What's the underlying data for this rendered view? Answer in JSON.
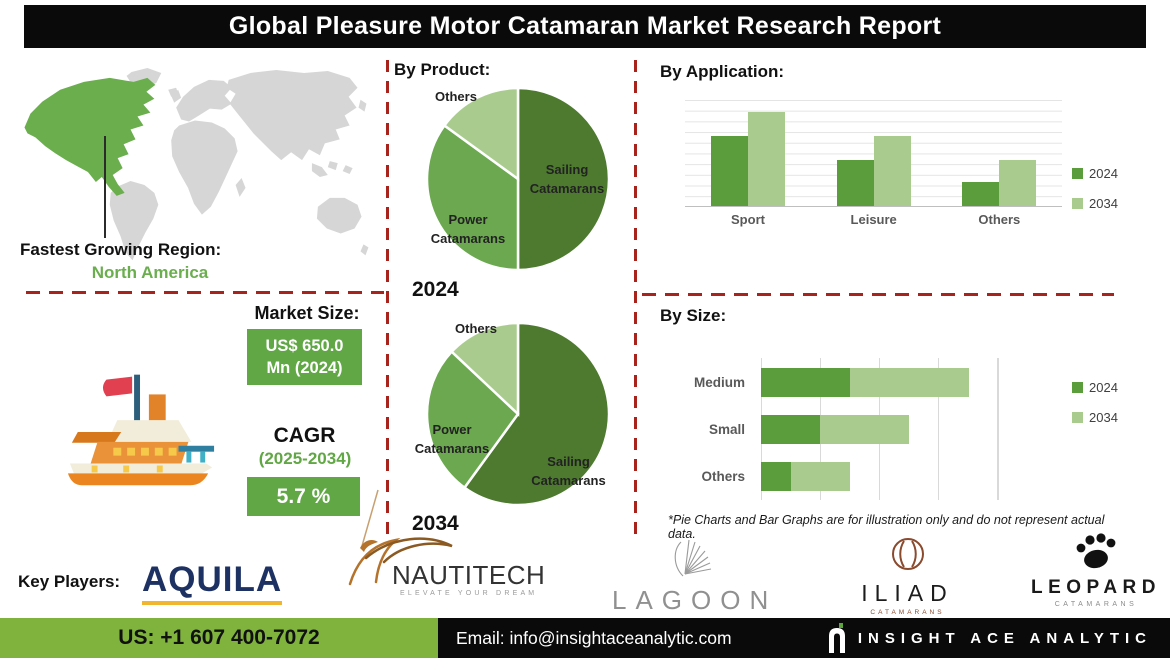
{
  "header": {
    "title": "Global Pleasure Motor Catamaran Market Research Report"
  },
  "map_section": {
    "heading": "Fastest Growing Region:",
    "region": "North America"
  },
  "market_size": {
    "heading": "Market Size:",
    "value_line1": "US$ 650.0",
    "value_line2": "Mn (2024)",
    "cagr_label": "CAGR",
    "cagr_period": "(2025-2034)",
    "cagr_value": "5.7 %"
  },
  "sections": {
    "by_product": "By Product:",
    "by_application": "By Application:",
    "by_size": "By Size:"
  },
  "footnote": "*Pie Charts and Bar Graphs are for illustration only and do not represent actual data.",
  "key_players": {
    "label": "Key Players:",
    "aquila": "AQUILA",
    "nautitech": "NAUTITECH",
    "nautitech_tagline": "ELEVATE YOUR DREAM",
    "lagoon": "LAGOON",
    "iliad": "ILIAD",
    "iliad_tagline": "CATAMARANS",
    "leopard": "LEOPARD",
    "leopard_tagline": "CATAMARANS"
  },
  "footer": {
    "phone": "US: +1 607 400-7072",
    "email": "Email: info@insightaceanalytic.com",
    "brand": "INSIGHT ACE ANALYTIC"
  },
  "colors": {
    "green_dark": "#4e7a30",
    "green_mid": "#6ba84f",
    "green_light": "#a9cc8e",
    "map_green": "#6aae4e",
    "map_gray": "#d6d6d6",
    "box_green": "#61a745",
    "footer_green": "#7fb33e",
    "accent_red": "#a8231b"
  },
  "chart_data": [
    {
      "id": "by-product-2024",
      "type": "pie",
      "year_label": "2024",
      "slices": [
        {
          "label": "Sailing Catamarans",
          "value": 50,
          "color": "#4e7a30"
        },
        {
          "label": "Power Catamarans",
          "value": 35,
          "color": "#6ba84f"
        },
        {
          "label": "Others",
          "value": 15,
          "color": "#a9cc8e"
        }
      ]
    },
    {
      "id": "by-product-2034",
      "type": "pie",
      "year_label": "2034",
      "slices": [
        {
          "label": "Sailing Catamarans",
          "value": 60,
          "color": "#4e7a30"
        },
        {
          "label": "Power Catamarans",
          "value": 27,
          "color": "#6ba84f"
        },
        {
          "label": "Others",
          "value": 13,
          "color": "#a9cc8e"
        }
      ]
    },
    {
      "id": "by-application",
      "type": "bar",
      "orientation": "vertical",
      "categories": [
        "Sport",
        "Leisure",
        "Others"
      ],
      "series": [
        {
          "name": "2024",
          "color": "#5b9c3c",
          "values": [
            6.5,
            4.3,
            2.2
          ]
        },
        {
          "name": "2034",
          "color": "#a9cc8e",
          "values": [
            8.8,
            6.5,
            4.3
          ]
        }
      ],
      "ylim": [
        0,
        10
      ],
      "grid": "horizontal",
      "legend_position": "right"
    },
    {
      "id": "by-size",
      "type": "bar",
      "orientation": "horizontal",
      "stacked": true,
      "categories": [
        "Medium",
        "Small",
        "Others"
      ],
      "series": [
        {
          "name": "2024",
          "color": "#5b9c3c",
          "values": [
            1.5,
            1.0,
            0.5
          ]
        },
        {
          "name": "2034",
          "color": "#a9cc8e",
          "values": [
            2.0,
            1.5,
            1.0
          ]
        }
      ],
      "xlim": [
        0,
        4
      ],
      "grid": "vertical",
      "legend_position": "right"
    }
  ]
}
